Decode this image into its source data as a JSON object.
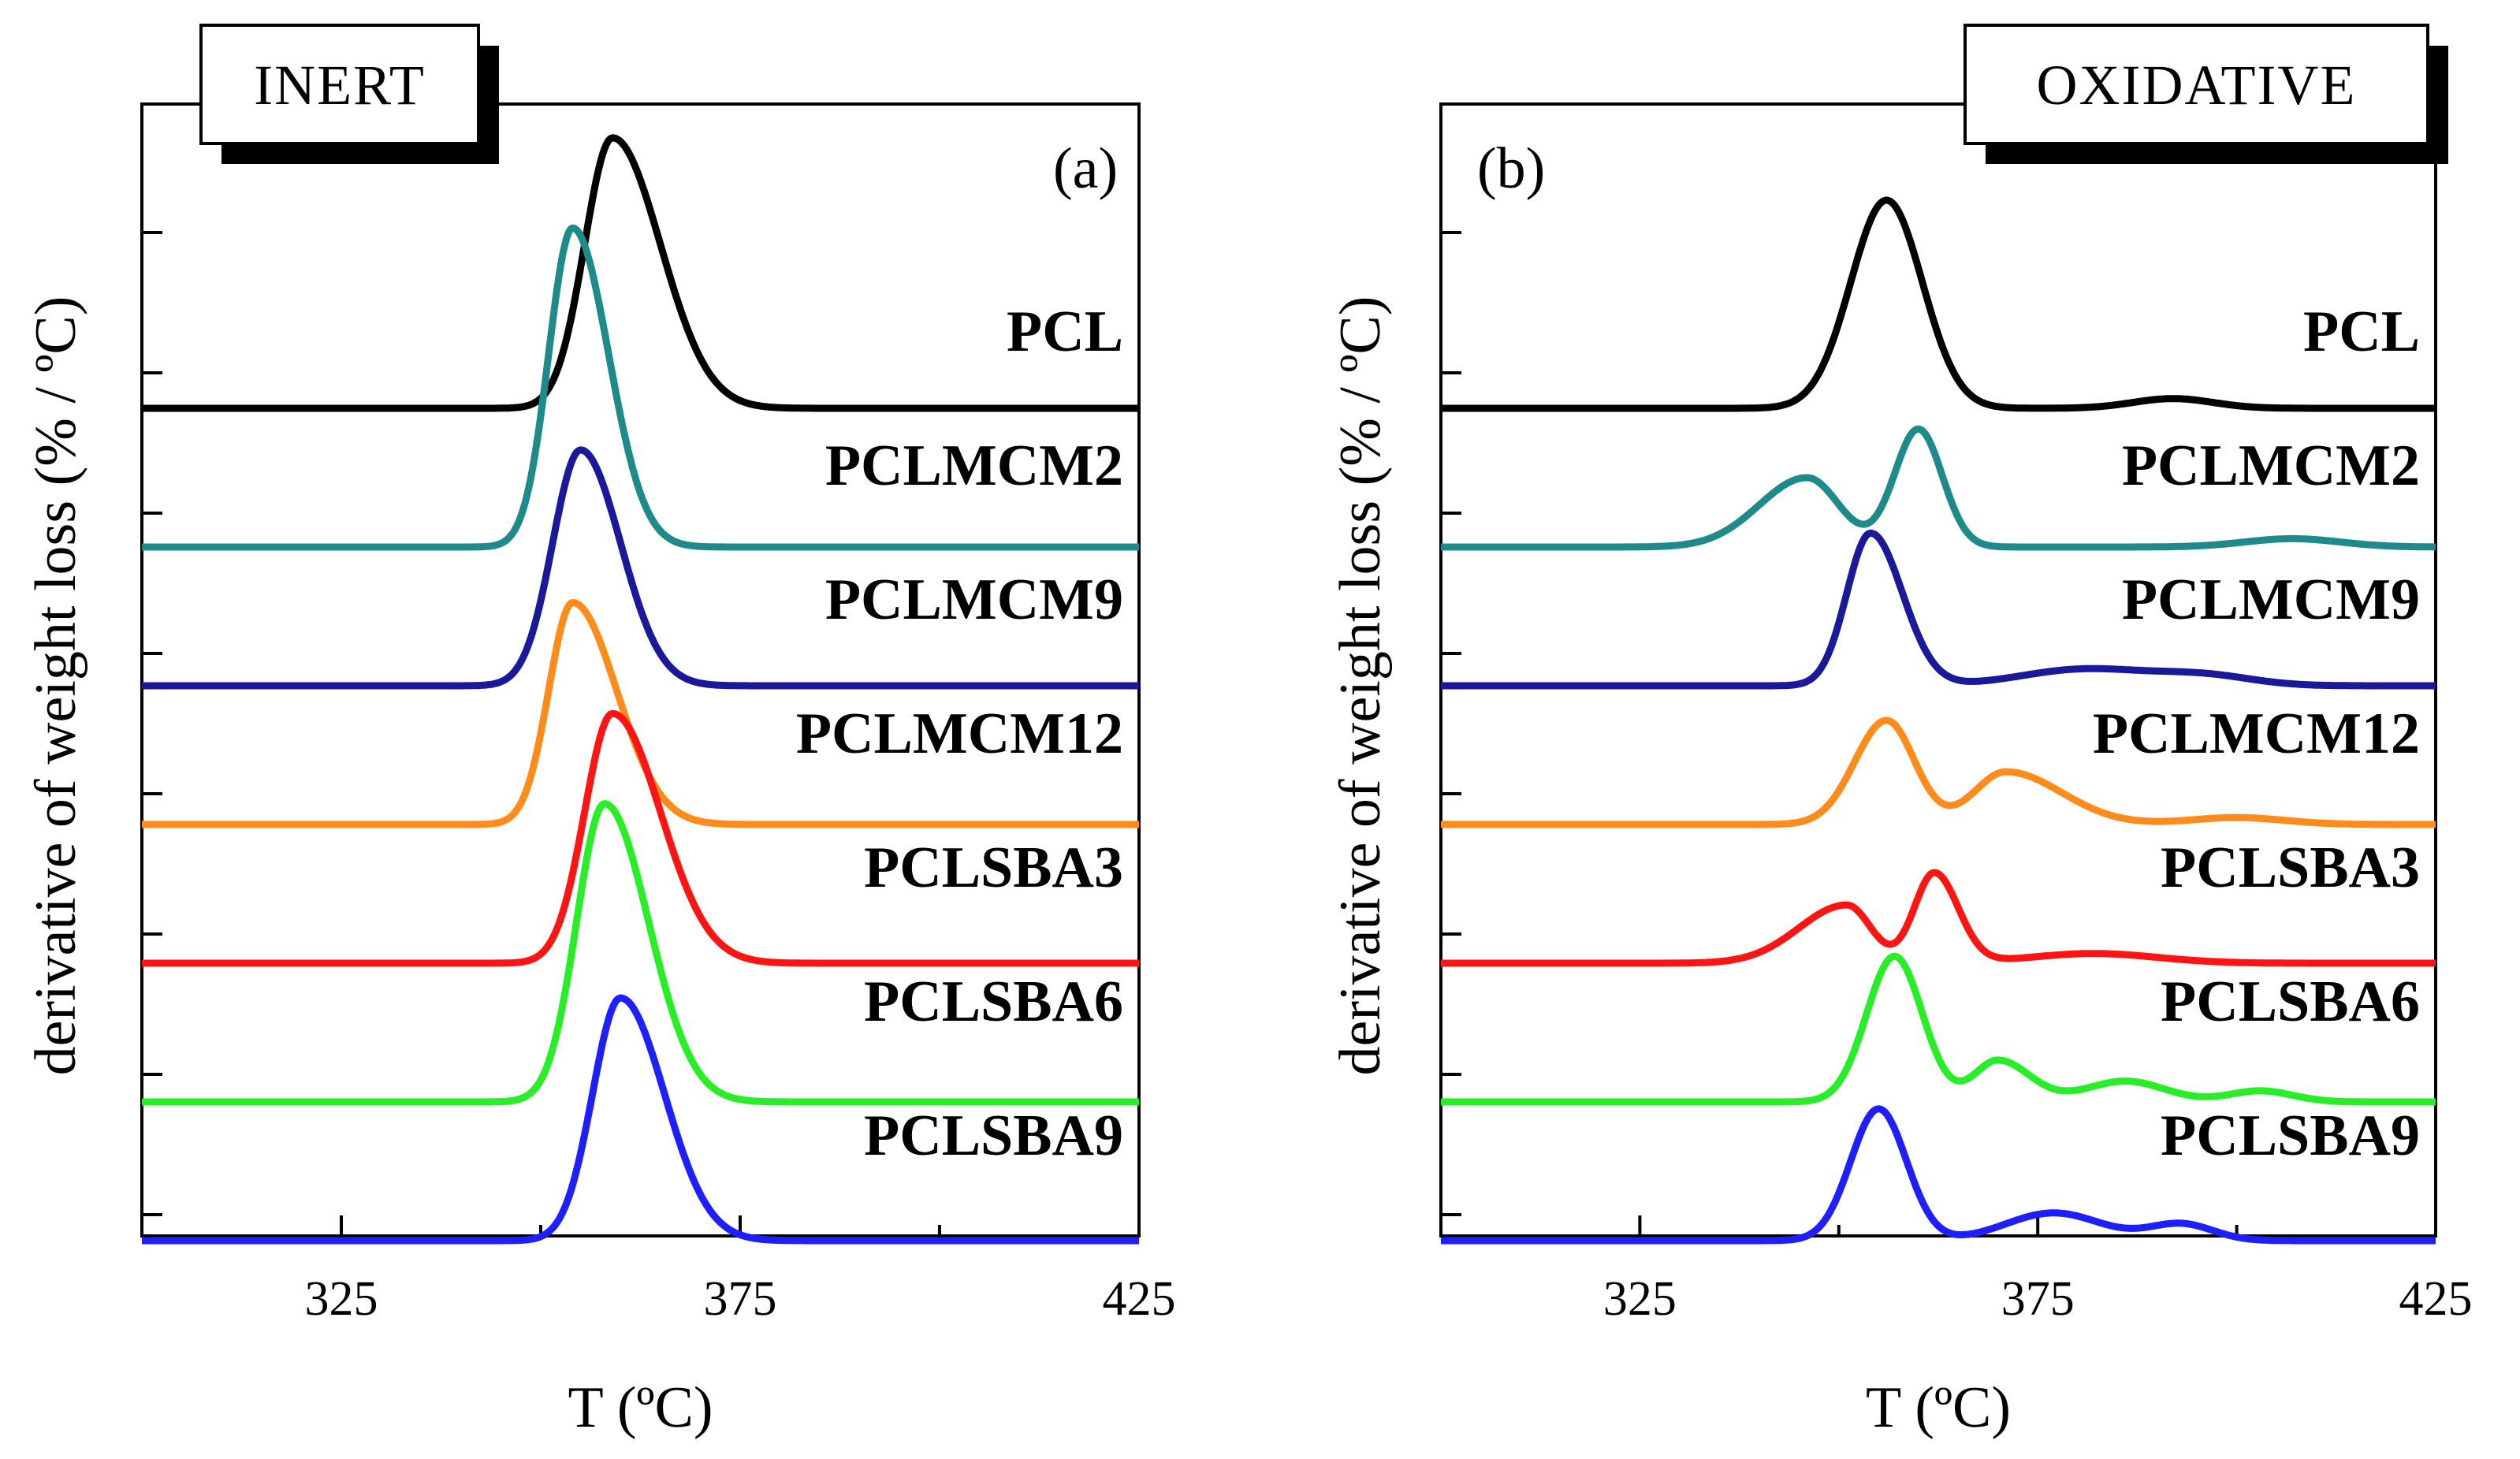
{
  "figure": {
    "colors": {
      "PCL": "#000000",
      "PCLMCM2": "#1e8a8a",
      "PCLMCM9": "#191999",
      "PCLMCM12": "#ff8c1a",
      "PCLSBA3": "#ff1414",
      "PCLSBA6": "#28ee28",
      "PCLSBA9": "#1e1eff"
    }
  },
  "chart_data": [
    {
      "type": "line",
      "panel": "(a)",
      "box_label": "INERT",
      "xlabel": "T (ºC)",
      "ylabel": "derivative of weight loss (% / ºC)",
      "xlim": [
        300,
        425
      ],
      "xticks": [
        325,
        375,
        425
      ],
      "xtick_labels": [
        "325",
        "375",
        "425"
      ],
      "y_ticks_unlabeled": 8,
      "curve_type": "stacked-offset",
      "series": [
        {
          "name": "PCL",
          "label": "PCL",
          "color_key": "PCL",
          "baseline": 0,
          "peaks": [
            {
              "x": 359,
              "height": 1.95,
              "wl": 3.5,
              "wr": 6.0
            }
          ]
        },
        {
          "name": "PCLMCM2",
          "label": "PCLMCM2",
          "color_key": "PCLMCM2",
          "baseline": 1,
          "peaks": [
            {
              "x": 354,
              "height": 2.3,
              "wl": 3.0,
              "wr": 4.5
            }
          ]
        },
        {
          "name": "PCLMCM9",
          "label": "PCLMCM9",
          "color_key": "PCLMCM9",
          "baseline": 2,
          "peaks": [
            {
              "x": 355,
              "height": 1.7,
              "wl": 3.5,
              "wr": 5.0
            }
          ]
        },
        {
          "name": "PCLMCM12",
          "label": "PCLMCM12",
          "color_key": "PCLMCM12",
          "baseline": 3,
          "peaks": [
            {
              "x": 354,
              "height": 1.6,
              "wl": 3.0,
              "wr": 5.5
            }
          ]
        },
        {
          "name": "PCLSBA3",
          "label": "PCLSBA3",
          "color_key": "PCLSBA3",
          "baseline": 4,
          "peaks": [
            {
              "x": 359,
              "height": 1.8,
              "wl": 3.5,
              "wr": 6.0
            }
          ]
        },
        {
          "name": "PCLSBA6",
          "label": "PCLSBA6",
          "color_key": "PCLSBA6",
          "baseline": 5,
          "peaks": [
            {
              "x": 358,
              "height": 2.15,
              "wl": 3.5,
              "wr": 5.5
            }
          ]
        },
        {
          "name": "PCLSBA9",
          "label": "PCLSBA9",
          "color_key": "PCLSBA9",
          "baseline": 6,
          "peaks": [
            {
              "x": 360,
              "height": 1.75,
              "wl": 3.5,
              "wr": 5.5
            }
          ]
        }
      ]
    },
    {
      "type": "line",
      "panel": "(b)",
      "box_label": "OXIDATIVE",
      "xlabel": "T (ºC)",
      "ylabel": "derivative of weight loss (% / ºC)",
      "xlim": [
        300,
        425
      ],
      "xticks": [
        325,
        375,
        425
      ],
      "xtick_labels": [
        "325",
        "375",
        "425"
      ],
      "y_ticks_unlabeled": 8,
      "curve_type": "stacked-offset",
      "series": [
        {
          "name": "PCL",
          "label": "PCL",
          "color_key": "PCL",
          "baseline": 0,
          "peaks": [
            {
              "x": 356,
              "height": 1.5,
              "wl": 4.5,
              "wr": 4.5
            },
            {
              "x": 392,
              "height": 0.07,
              "wl": 5,
              "wr": 5
            }
          ]
        },
        {
          "name": "PCLMCM2",
          "label": "PCLMCM2",
          "color_key": "PCLMCM2",
          "baseline": 1,
          "peaks": [
            {
              "x": 346,
              "height": 0.5,
              "wl": 6,
              "wr": 4
            },
            {
              "x": 360,
              "height": 0.85,
              "wl": 3,
              "wr": 3
            },
            {
              "x": 407,
              "height": 0.06,
              "wl": 6,
              "wr": 6
            }
          ]
        },
        {
          "name": "PCLMCM9",
          "label": "PCLMCM9",
          "color_key": "PCLMCM9",
          "baseline": 2,
          "peaks": [
            {
              "x": 354,
              "height": 1.1,
              "wl": 3,
              "wr": 4
            },
            {
              "x": 381,
              "height": 0.12,
              "wl": 8,
              "wr": 8
            },
            {
              "x": 396,
              "height": 0.07,
              "wl": 6,
              "wr": 6
            }
          ]
        },
        {
          "name": "PCLMCM12",
          "label": "PCLMCM12",
          "color_key": "PCLMCM12",
          "baseline": 3,
          "peaks": [
            {
              "x": 356,
              "height": 0.75,
              "wl": 4,
              "wr": 3.5
            },
            {
              "x": 371,
              "height": 0.38,
              "wl": 4,
              "wr": 7
            },
            {
              "x": 400,
              "height": 0.05,
              "wl": 6,
              "wr": 6
            }
          ]
        },
        {
          "name": "PCLSBA3",
          "label": "PCLSBA3",
          "color_key": "PCLSBA3",
          "baseline": 4,
          "peaks": [
            {
              "x": 351,
              "height": 0.42,
              "wl": 6,
              "wr": 3
            },
            {
              "x": 362,
              "height": 0.65,
              "wl": 2.5,
              "wr": 3
            },
            {
              "x": 382,
              "height": 0.07,
              "wl": 8,
              "wr": 8
            }
          ]
        },
        {
          "name": "PCLSBA6",
          "label": "PCLSBA6",
          "color_key": "PCLSBA6",
          "baseline": 5,
          "peaks": [
            {
              "x": 357,
              "height": 1.05,
              "wl": 3.5,
              "wr": 3.5
            },
            {
              "x": 370,
              "height": 0.3,
              "wl": 3,
              "wr": 4
            },
            {
              "x": 386,
              "height": 0.15,
              "wl": 5,
              "wr": 5
            },
            {
              "x": 403,
              "height": 0.08,
              "wl": 4,
              "wr": 4
            }
          ]
        },
        {
          "name": "PCLSBA9",
          "label": "PCLSBA9",
          "color_key": "PCLSBA9",
          "baseline": 6,
          "peaks": [
            {
              "x": 355,
              "height": 0.95,
              "wl": 3.5,
              "wr": 3.5
            },
            {
              "x": 377,
              "height": 0.2,
              "wl": 6,
              "wr": 6
            },
            {
              "x": 393,
              "height": 0.12,
              "wl": 4,
              "wr": 4
            }
          ]
        }
      ]
    }
  ]
}
